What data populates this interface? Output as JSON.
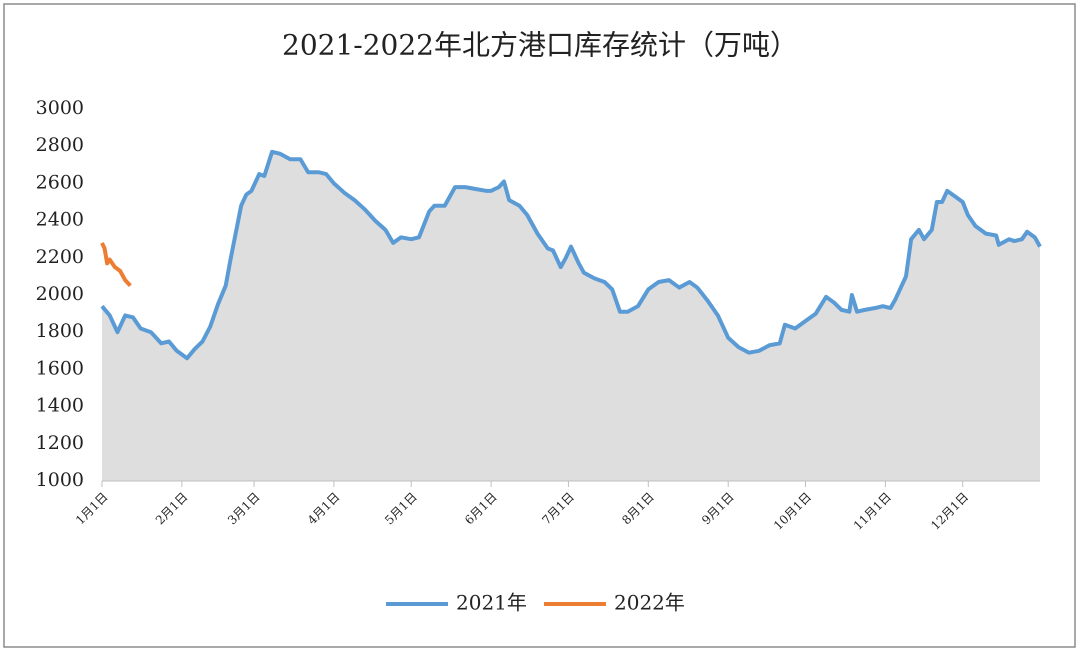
{
  "chart_data": {
    "type": "line",
    "title": "2021-2022年北方港口库存统计（万吨）",
    "xlim": [
      0,
      364
    ],
    "xticks": [
      {
        "value": 0,
        "label": "1月1日"
      },
      {
        "value": 31,
        "label": "2月1日"
      },
      {
        "value": 59,
        "label": "3月1日"
      },
      {
        "value": 90,
        "label": "4月1日"
      },
      {
        "value": 120,
        "label": "5月1日"
      },
      {
        "value": 151,
        "label": "6月1日"
      },
      {
        "value": 181,
        "label": "7月1日"
      },
      {
        "value": 212,
        "label": "8月1日"
      },
      {
        "value": 243,
        "label": "9月1日"
      },
      {
        "value": 273,
        "label": "10月1日"
      },
      {
        "value": 304,
        "label": "11月1日"
      },
      {
        "value": 334,
        "label": "12月1日"
      }
    ],
    "ylim": [
      1000,
      3000
    ],
    "yticks": [
      1000,
      1200,
      1400,
      1600,
      1800,
      2000,
      2200,
      2400,
      2600,
      2800,
      3000
    ],
    "legend": "bottom",
    "series": [
      {
        "name": "2021年",
        "color": "#5b9bd5",
        "area_color": "#dedede",
        "x": [
          0,
          3,
          6,
          9,
          12,
          15,
          19,
          23,
          26,
          29,
          33,
          36,
          39,
          42,
          45,
          48,
          50,
          54,
          56,
          58,
          61,
          63,
          66,
          69,
          73,
          77,
          80,
          84,
          87,
          90,
          94,
          98,
          102,
          106,
          110,
          113,
          116,
          120,
          123,
          127,
          129,
          133,
          137,
          141,
          145,
          149,
          151,
          154,
          156,
          158,
          162,
          165,
          169,
          173,
          175,
          178,
          180,
          182,
          185,
          187,
          191,
          195,
          198,
          201,
          204,
          208,
          212,
          216,
          220,
          224,
          228,
          231,
          235,
          239,
          243,
          247,
          251,
          255,
          259,
          263,
          265,
          269,
          273,
          277,
          281,
          284,
          287,
          290,
          291,
          293,
          296,
          300,
          303,
          306,
          308,
          312,
          314,
          317,
          319,
          322,
          324,
          326,
          328,
          331,
          334,
          336,
          339,
          343,
          347,
          348,
          352,
          354,
          357,
          359,
          362,
          364
        ],
        "values": [
          1940,
          1890,
          1800,
          1890,
          1880,
          1820,
          1800,
          1740,
          1750,
          1700,
          1660,
          1710,
          1750,
          1830,
          1950,
          2050,
          2200,
          2480,
          2540,
          2560,
          2650,
          2640,
          2770,
          2760,
          2730,
          2730,
          2660,
          2660,
          2650,
          2600,
          2550,
          2510,
          2460,
          2400,
          2350,
          2280,
          2310,
          2300,
          2310,
          2450,
          2480,
          2480,
          2580,
          2580,
          2570,
          2560,
          2560,
          2580,
          2610,
          2510,
          2480,
          2430,
          2330,
          2250,
          2240,
          2150,
          2200,
          2260,
          2170,
          2120,
          2090,
          2070,
          2030,
          1910,
          1910,
          1940,
          2030,
          2070,
          2080,
          2040,
          2070,
          2040,
          1970,
          1890,
          1770,
          1720,
          1690,
          1700,
          1730,
          1740,
          1840,
          1820,
          1860,
          1900,
          1990,
          1960,
          1920,
          1910,
          2000,
          1910,
          1920,
          1930,
          1940,
          1930,
          1980,
          2100,
          2300,
          2350,
          2300,
          2350,
          2500,
          2500,
          2560,
          2530,
          2500,
          2430,
          2370,
          2330,
          2320,
          2270,
          2300,
          2290,
          2300,
          2340,
          2310,
          2260
        ]
      },
      {
        "name": "2022年",
        "color": "#ed7d31",
        "x": [
          0,
          1,
          2,
          3,
          5,
          7,
          9,
          11
        ],
        "values": [
          2280,
          2250,
          2170,
          2190,
          2150,
          2130,
          2080,
          2050
        ]
      }
    ]
  }
}
